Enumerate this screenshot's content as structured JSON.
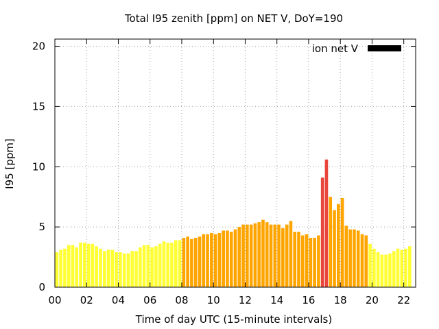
{
  "chart_data": {
    "type": "bar",
    "title": "Total I95 zenith [ppm] on NET V, DoY=190",
    "xlabel": "Time of day UTC (15-minute intervals)",
    "ylabel": "I95 [ppm]",
    "xlim": [
      0,
      22.75
    ],
    "ylim": [
      0,
      20.6
    ],
    "xticks": [
      "00",
      "02",
      "04",
      "06",
      "08",
      "10",
      "12",
      "14",
      "16",
      "18",
      "20",
      "22"
    ],
    "xtick_values": [
      0,
      2,
      4,
      6,
      8,
      10,
      12,
      14,
      16,
      18,
      20,
      22
    ],
    "yticks": [
      0,
      5,
      10,
      15,
      20
    ],
    "grid": true,
    "legend_position": "top-right",
    "legend": [
      {
        "label": "ion net V",
        "color": "#000000"
      }
    ],
    "bar_width_hours": 0.2,
    "x_start_hours": 0.125,
    "x_step_hours": 0.25,
    "values": [
      2.9,
      3.1,
      3.2,
      3.5,
      3.5,
      3.3,
      3.7,
      3.7,
      3.6,
      3.6,
      3.4,
      3.2,
      3.0,
      3.1,
      3.1,
      2.9,
      2.9,
      2.8,
      2.8,
      3.0,
      3.0,
      3.3,
      3.5,
      3.5,
      3.3,
      3.4,
      3.6,
      3.8,
      3.7,
      3.7,
      3.9,
      3.9,
      4.1,
      4.2,
      4.0,
      4.1,
      4.2,
      4.4,
      4.4,
      4.5,
      4.4,
      4.5,
      4.7,
      4.7,
      4.6,
      4.8,
      5.0,
      5.2,
      5.2,
      5.2,
      5.3,
      5.4,
      5.6,
      5.4,
      5.2,
      5.2,
      5.2,
      4.9,
      5.2,
      5.5,
      4.6,
      4.6,
      4.3,
      4.4,
      4.1,
      4.1,
      4.3,
      9.1,
      10.6,
      7.5,
      6.4,
      6.9,
      7.4,
      5.1,
      4.8,
      4.8,
      4.7,
      4.4,
      4.3,
      3.6,
      3.2,
      2.9,
      2.7,
      2.7,
      2.8,
      3.0,
      3.2,
      3.1,
      3.2,
      3.4
    ],
    "colors": {
      "low": "#ffff33",
      "medium": "#ffa500",
      "high": "#e8453c",
      "grid": "#a0a0a0",
      "axis": "#000000"
    }
  }
}
